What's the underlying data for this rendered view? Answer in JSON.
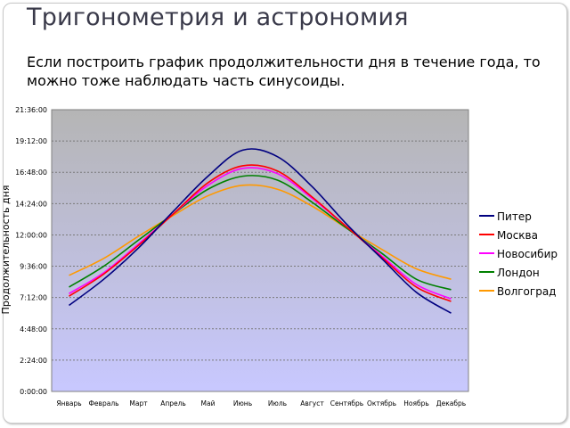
{
  "slide": {
    "title": "Тригонометрия и астрономия",
    "body": "Если построить график продолжительности дня в течение года, то можно тоже наблюдать часть синусоиды."
  },
  "chart_data": {
    "type": "line",
    "ylabel": "Продолжительность дня",
    "categories": [
      "Январь",
      "Февраль",
      "Март",
      "Апрель",
      "Май",
      "Июнь",
      "Июль",
      "Август",
      "Сентябрь",
      "Октябрь",
      "Ноябрь",
      "Декабрь"
    ],
    "y_tick_labels": [
      "0:00:00",
      "2:24:00",
      "4:48:00",
      "7:12:00",
      "9:36:00",
      "12:00:00",
      "14:24:00",
      "16:48:00",
      "19:12:00",
      "21:36:00"
    ],
    "ylim_hours": [
      0,
      21.6
    ],
    "grid": true,
    "legend_position": "right",
    "series": [
      {
        "name": "Питер",
        "color": "#000080",
        "values": [
          6.6,
          8.6,
          11.0,
          13.8,
          16.5,
          18.5,
          18.0,
          15.7,
          12.8,
          10.2,
          7.6,
          6.0
        ]
      },
      {
        "name": "Москва",
        "color": "#ff0000",
        "values": [
          7.3,
          9.0,
          11.2,
          13.6,
          16.0,
          17.3,
          16.9,
          14.9,
          12.6,
          10.3,
          8.0,
          6.9
        ]
      },
      {
        "name": "Новосибирск",
        "color": "#ff00ff",
        "values": [
          7.5,
          9.1,
          11.3,
          13.6,
          15.8,
          17.1,
          16.7,
          14.8,
          12.6,
          10.4,
          8.2,
          7.1
        ]
      },
      {
        "name": "Лондон",
        "color": "#008000",
        "values": [
          8.0,
          9.6,
          11.6,
          13.6,
          15.5,
          16.5,
          16.2,
          14.5,
          12.5,
          10.6,
          8.6,
          7.8
        ]
      },
      {
        "name": "Волгоград",
        "color": "#ff9900",
        "values": [
          8.9,
          10.2,
          11.9,
          13.5,
          15.0,
          15.8,
          15.5,
          14.2,
          12.5,
          10.9,
          9.4,
          8.6
        ]
      }
    ]
  },
  "legend_labels": [
    "Питер",
    "Москва",
    "Новосибир",
    "Лондон",
    "Волгоград"
  ],
  "x_tick_labels": [
    "Январь",
    "Февраль",
    "Март",
    "Апрель",
    "Май",
    "Июнь",
    "Июль",
    "Август",
    "Сентябрь",
    "Октябрь",
    "Ноябрь",
    "Декабрь"
  ]
}
